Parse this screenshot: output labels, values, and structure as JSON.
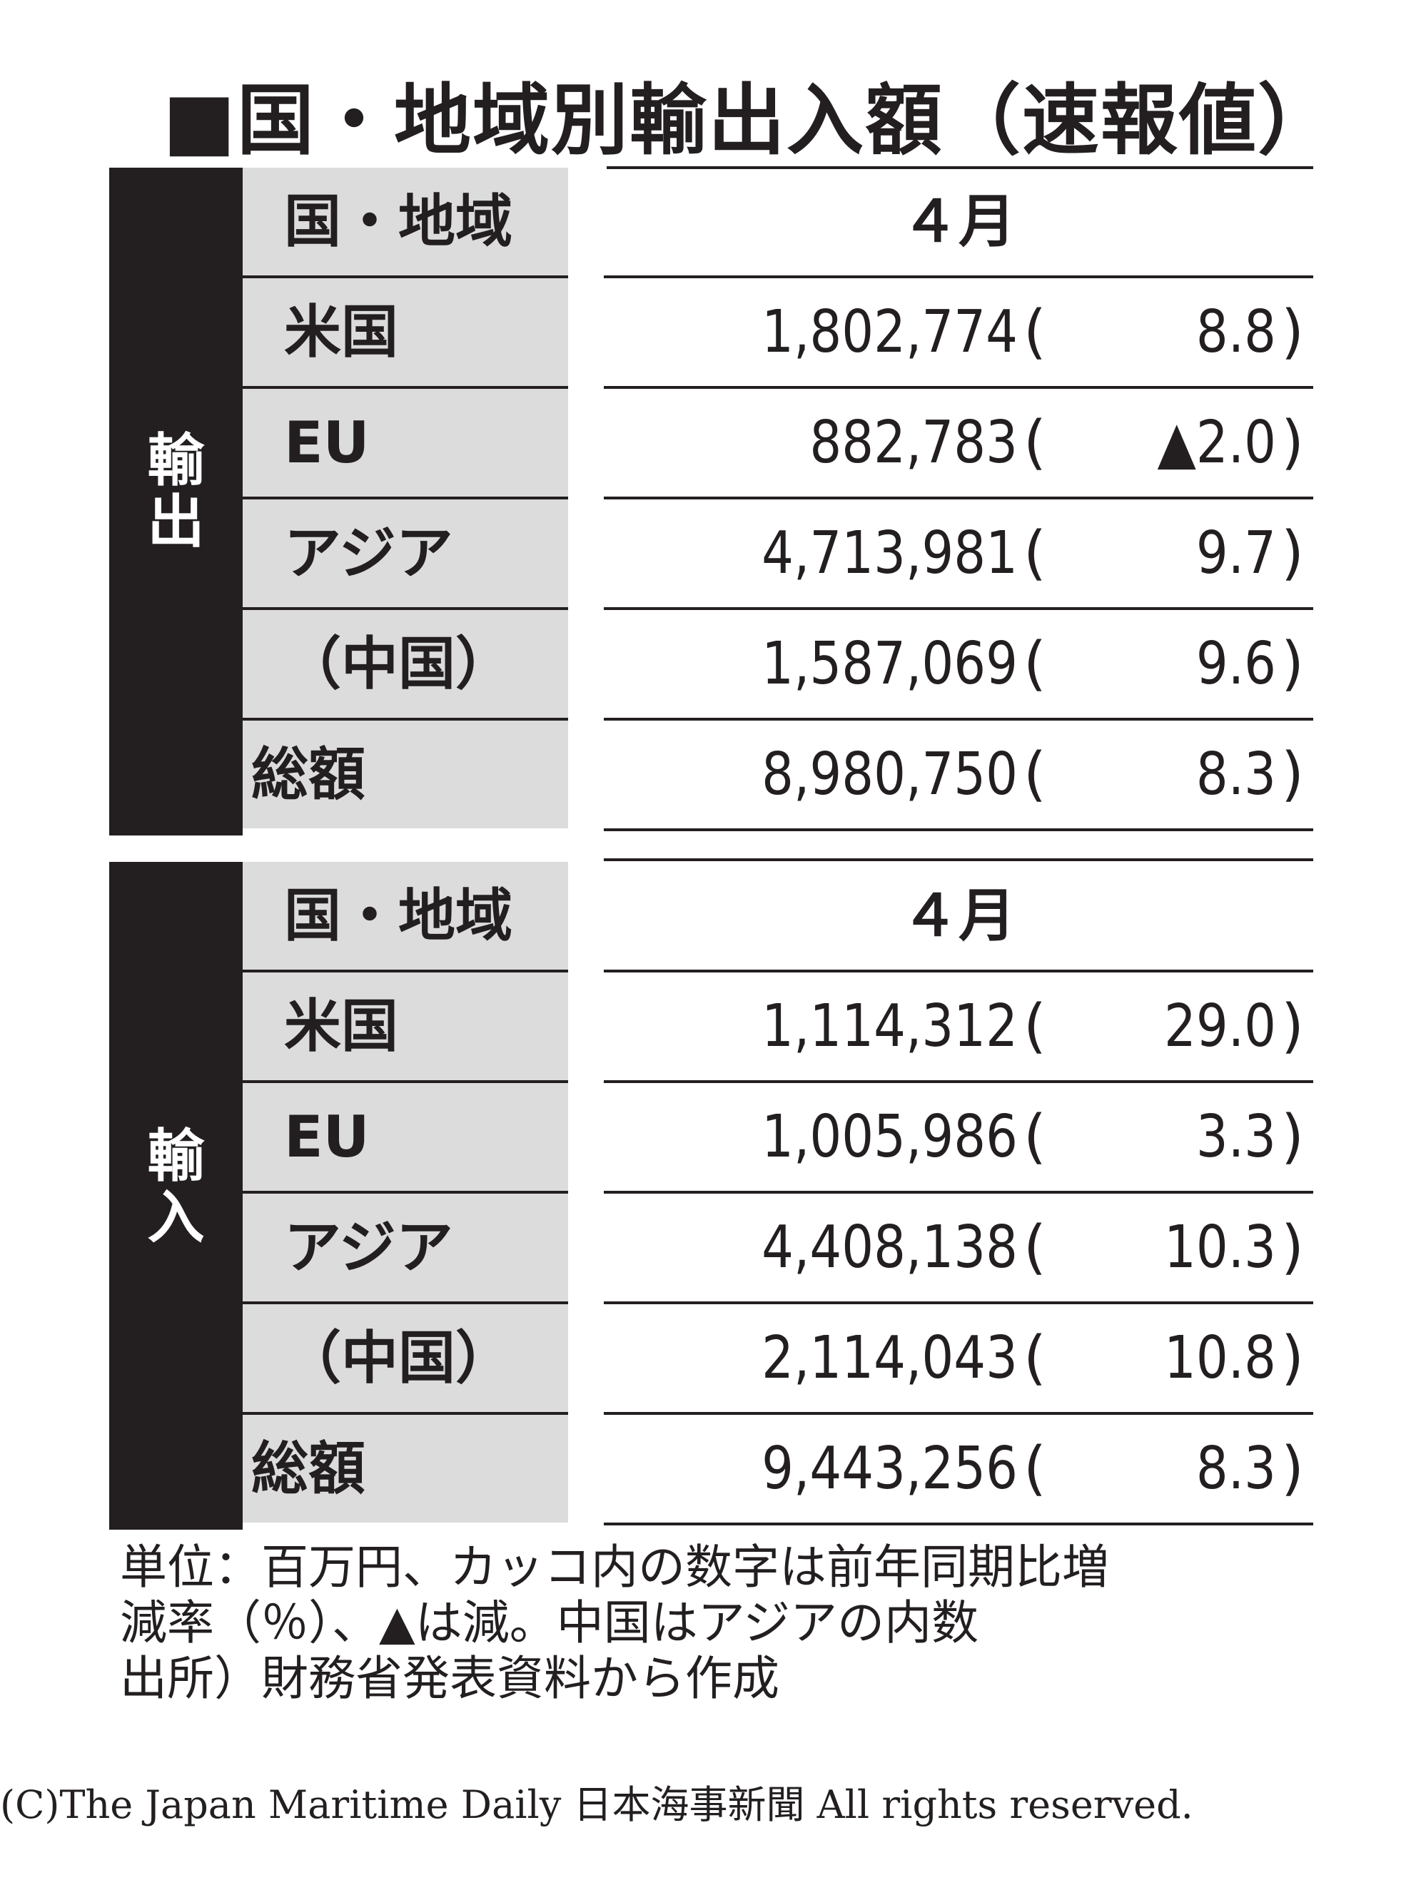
{
  "title": "■国・地域別輸出入額（速報値）",
  "sections": [
    {
      "side_label": "輸\n出",
      "header": {
        "label": "国・地域",
        "period": "４月"
      },
      "rows": [
        {
          "label": "米国",
          "value": "1,802,774",
          "open": "(",
          "change": "8.8",
          "close": ")"
        },
        {
          "label": "EU",
          "value": "882,783",
          "open": "(",
          "change": "▲2.0",
          "close": ")"
        },
        {
          "label": "アジア",
          "value": "4,713,981",
          "open": "(",
          "change": "9.7",
          "close": ")"
        },
        {
          "label": "（中国）",
          "value": "1,587,069",
          "open": "(",
          "change": "9.6",
          "close": ")"
        },
        {
          "label": "総額",
          "value": "8,980,750",
          "open": "(",
          "change": "8.3",
          "close": ")"
        }
      ]
    },
    {
      "side_label": "輸\n入",
      "header": {
        "label": "国・地域",
        "period": "４月"
      },
      "rows": [
        {
          "label": "米国",
          "value": "1,114,312",
          "open": "(",
          "change": "29.0",
          "close": ")"
        },
        {
          "label": "EU",
          "value": "1,005,986",
          "open": "(",
          "change": "3.3",
          "close": ")"
        },
        {
          "label": "アジア",
          "value": "4,408,138",
          "open": "(",
          "change": "10.3",
          "close": ")"
        },
        {
          "label": "（中国）",
          "value": "2,114,043",
          "open": "(",
          "change": "10.8",
          "close": ")"
        },
        {
          "label": "総額",
          "value": "9,443,256",
          "open": "(",
          "change": "8.3",
          "close": ")"
        }
      ]
    }
  ],
  "notes": [
    "単位：百万円、カッコ内の数字は前年同期比増",
    "減率（％）、▲は減。中国はアジアの内数",
    "出所）財務省発表資料から作成"
  ],
  "copyright": "(C)The Japan Maritime Daily 日本海事新聞 All rights reserved."
}
